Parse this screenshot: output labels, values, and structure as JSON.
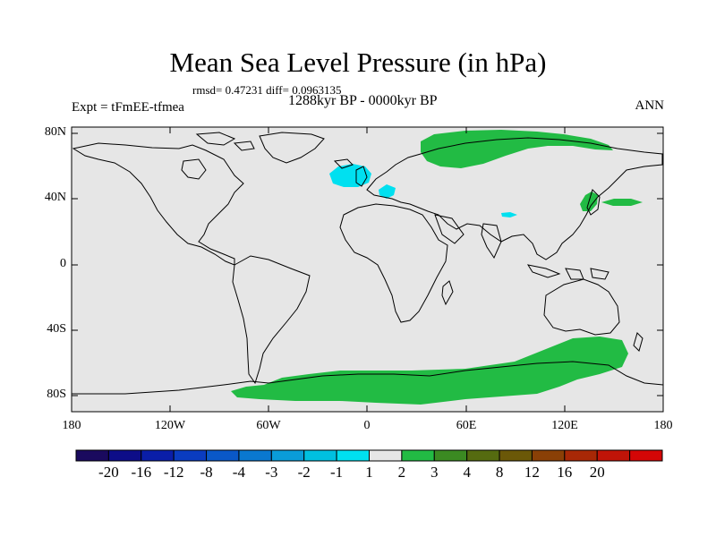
{
  "header": {
    "title": "Mean Sea Level Pressure (in hPa)",
    "stats": "rmsd= 0.47231 diff= 0.0963135",
    "period": "1288kyr BP - 0000kyr BP",
    "experiment": "Expt = tFmEE-tfmea",
    "season": "ANN"
  },
  "axes": {
    "lat_ticks": [
      "80N",
      "40N",
      "0",
      "40S",
      "80S"
    ],
    "lon_ticks": [
      "180",
      "120W",
      "60W",
      "0",
      "60E",
      "120E",
      "180"
    ]
  },
  "colors": {
    "background": "#e6e6e6",
    "positive_anomaly": "#22bb44",
    "negative_anomaly": "#00e0f0",
    "coastline": "#000000"
  },
  "regions": [
    {
      "name": "arctic-eurasia-high",
      "sign": "positive",
      "color": "#22bb44"
    },
    {
      "name": "east-asia-pacific-high",
      "sign": "positive",
      "color": "#22bb44"
    },
    {
      "name": "north-atlantic-low",
      "sign": "negative",
      "color": "#00e0f0"
    },
    {
      "name": "mediterranean-low",
      "sign": "negative",
      "color": "#00e0f0"
    },
    {
      "name": "tibet-low",
      "sign": "negative",
      "color": "#00e0f0"
    },
    {
      "name": "southern-ocean-high",
      "sign": "positive",
      "color": "#22bb44"
    }
  ],
  "colorbar": {
    "labels": [
      "-20",
      "-16",
      "-12",
      "-8",
      "-4",
      "-3",
      "-2",
      "-1",
      "1",
      "2",
      "3",
      "4",
      "8",
      "12",
      "16",
      "20"
    ],
    "colors": [
      "#1a0a5e",
      "#0d0d88",
      "#0a1ea8",
      "#0a3cc0",
      "#0a58c8",
      "#0a78d0",
      "#0a9cd8",
      "#00c0e0",
      "#00e0f0",
      "#e6e6e6",
      "#22bb44",
      "#3b8a22",
      "#556b10",
      "#6b5808",
      "#8a4006",
      "#a82806",
      "#c01408",
      "#d40606"
    ]
  }
}
